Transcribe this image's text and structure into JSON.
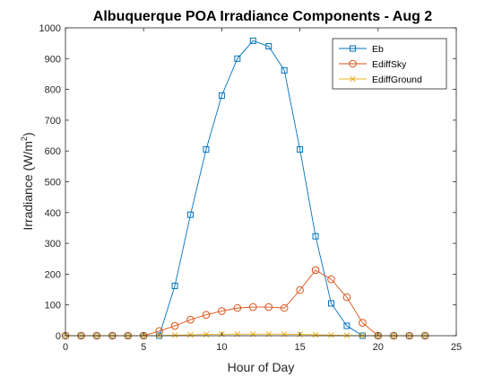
{
  "chart_data": {
    "type": "line",
    "title": "Albuquerque POA Irradiance Components - Aug 2",
    "xlabel": "Hour of Day",
    "ylabel_main": "Irradiance (W/m",
    "ylabel_sup": "2",
    "ylabel_close": ")",
    "xlim": [
      0,
      25
    ],
    "ylim": [
      0,
      1000
    ],
    "xticks": [
      0,
      5,
      10,
      15,
      20,
      25
    ],
    "yticks": [
      0,
      100,
      200,
      300,
      400,
      500,
      600,
      700,
      800,
      900,
      1000
    ],
    "grid": false,
    "legend_position": "top-right",
    "x": [
      0,
      1,
      2,
      3,
      4,
      5,
      6,
      7,
      8,
      9,
      10,
      11,
      12,
      13,
      14,
      15,
      16,
      17,
      18,
      19,
      20,
      21,
      22,
      23
    ],
    "series": [
      {
        "name": "Eb",
        "color": "#0072BD",
        "marker": "square",
        "values": [
          0,
          0,
          0,
          0,
          0,
          0,
          0,
          162,
          393,
          605,
          780,
          900,
          958,
          940,
          862,
          605,
          323,
          105,
          32,
          0,
          0,
          0,
          0,
          0
        ]
      },
      {
        "name": "EdiffSky",
        "color": "#D95319",
        "marker": "circle",
        "values": [
          0,
          0,
          0,
          0,
          0,
          0,
          15,
          32,
          52,
          68,
          80,
          90,
          93,
          93,
          90,
          148,
          213,
          183,
          125,
          42,
          0,
          0,
          0,
          0
        ]
      },
      {
        "name": "EdiffGround",
        "color": "#EDB120",
        "marker": "x",
        "values": [
          0,
          0,
          0,
          0,
          0,
          0,
          0,
          2,
          3,
          4,
          5,
          5,
          5,
          5,
          5,
          4,
          3,
          2,
          1,
          0,
          0,
          0,
          0,
          0
        ]
      }
    ]
  }
}
